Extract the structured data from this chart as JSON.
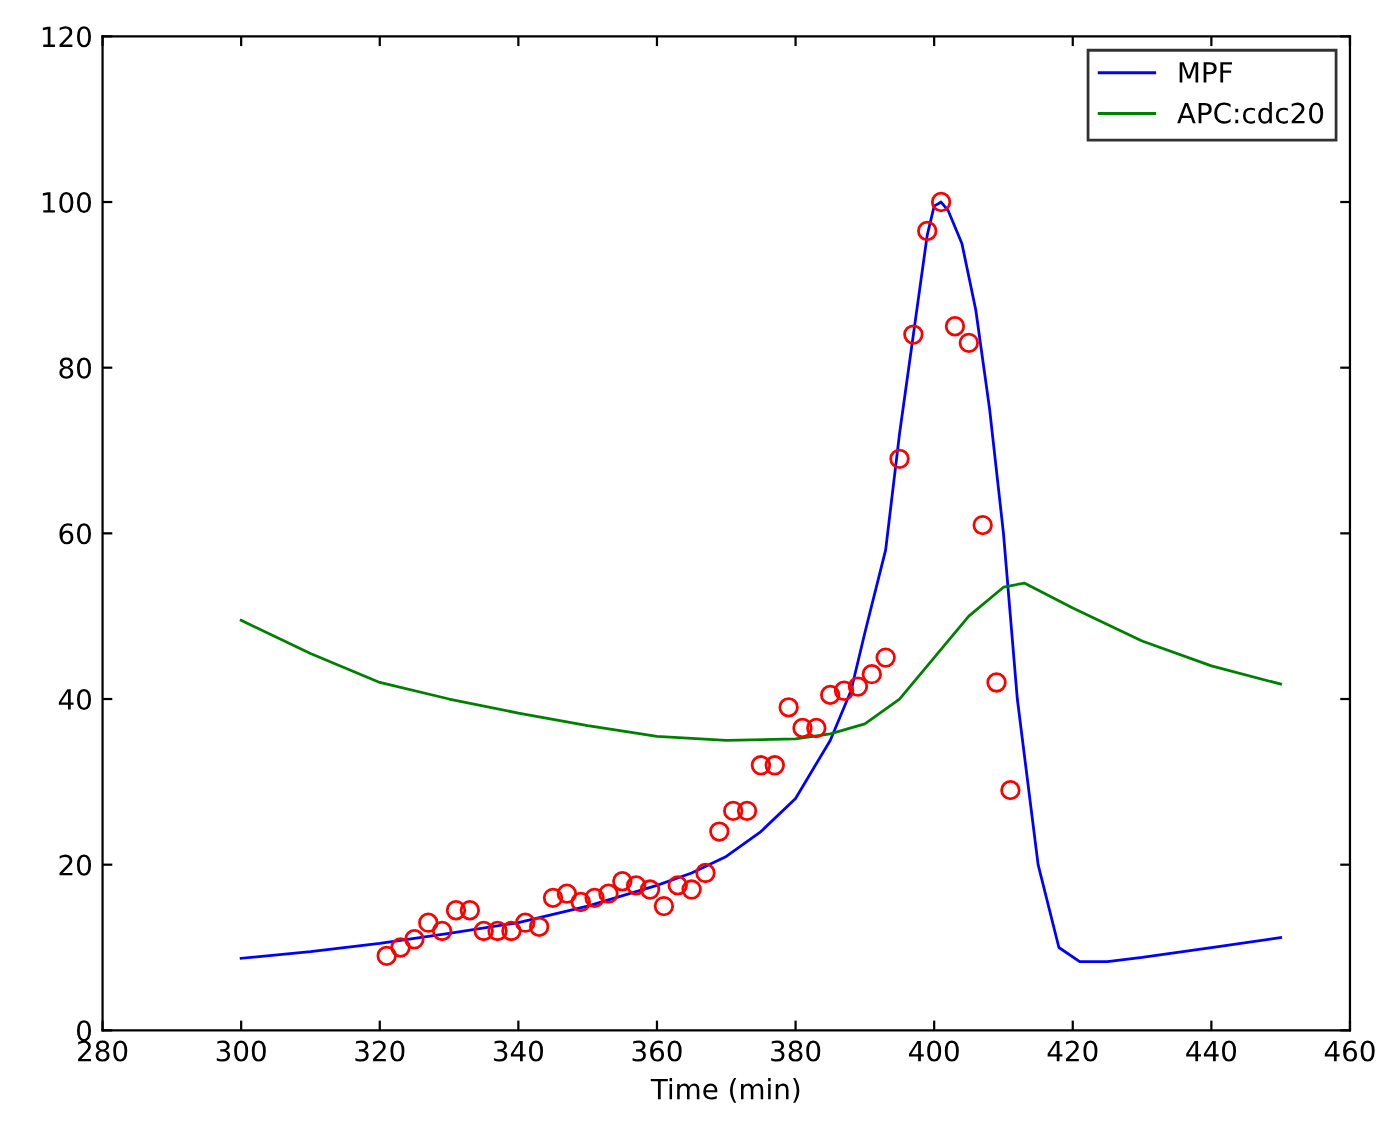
{
  "chart_data": {
    "type": "line",
    "xlabel": "Time (min)",
    "xlim": [
      280,
      460
    ],
    "ylim": [
      0,
      120
    ],
    "xticks": [
      280,
      300,
      320,
      340,
      360,
      380,
      400,
      420,
      440,
      460
    ],
    "yticks": [
      0,
      20,
      40,
      60,
      80,
      100,
      120
    ],
    "grid": false,
    "legend": "top right",
    "series": [
      {
        "name": "MPF",
        "color": "#0000ff",
        "x": [
          300,
          310,
          320,
          330,
          340,
          350,
          360,
          365,
          370,
          375,
          380,
          385,
          388,
          390,
          393,
          395,
          396,
          398,
          399,
          400,
          401,
          402,
          404,
          406,
          408,
          410,
          412,
          415,
          418,
          421,
          425,
          430,
          440,
          450
        ],
        "values": [
          8.7,
          9.5,
          10.5,
          11.7,
          13,
          15,
          17.5,
          19,
          21,
          24,
          28,
          35,
          41,
          48,
          58,
          72,
          78,
          90,
          96,
          99.5,
          100,
          99,
          95,
          87,
          75,
          60,
          40,
          20,
          10,
          8.3,
          8.3,
          8.8,
          10,
          11.2
        ]
      },
      {
        "name": "APC:cdc20",
        "color": "#008000",
        "x": [
          300,
          310,
          320,
          330,
          340,
          350,
          360,
          370,
          380,
          385,
          390,
          395,
          400,
          405,
          410,
          413,
          420,
          430,
          440,
          450
        ],
        "values": [
          49.5,
          45.5,
          42,
          40,
          38.3,
          36.8,
          35.5,
          35,
          35.2,
          35.8,
          37,
          40,
          45,
          50,
          53.5,
          54,
          51,
          47,
          44,
          41.8
        ]
      },
      {
        "type": "scatter",
        "color": "#ff0000",
        "marker": "circle",
        "x": [
          321,
          323,
          325,
          327,
          329,
          331,
          333,
          335,
          337,
          339,
          341,
          343,
          345,
          347,
          349,
          351,
          353,
          355,
          357,
          359,
          361,
          363,
          365,
          367,
          369,
          371,
          373,
          375,
          377,
          379,
          381,
          383,
          385,
          387,
          389,
          391,
          393,
          395,
          397,
          399,
          401,
          403,
          405,
          407,
          409,
          411
        ],
        "values": [
          9,
          10,
          11,
          13,
          12,
          14.5,
          14.5,
          12,
          12,
          12,
          13,
          12.5,
          16,
          16.5,
          15.5,
          16,
          16.5,
          18,
          17.5,
          17,
          15,
          17.5,
          17,
          19,
          24,
          26.5,
          26.5,
          32,
          32,
          39,
          36.5,
          36.5,
          40.5,
          41,
          41.5,
          43,
          45,
          69,
          84,
          96.5,
          100,
          85,
          83,
          61,
          42,
          29
        ]
      }
    ]
  }
}
